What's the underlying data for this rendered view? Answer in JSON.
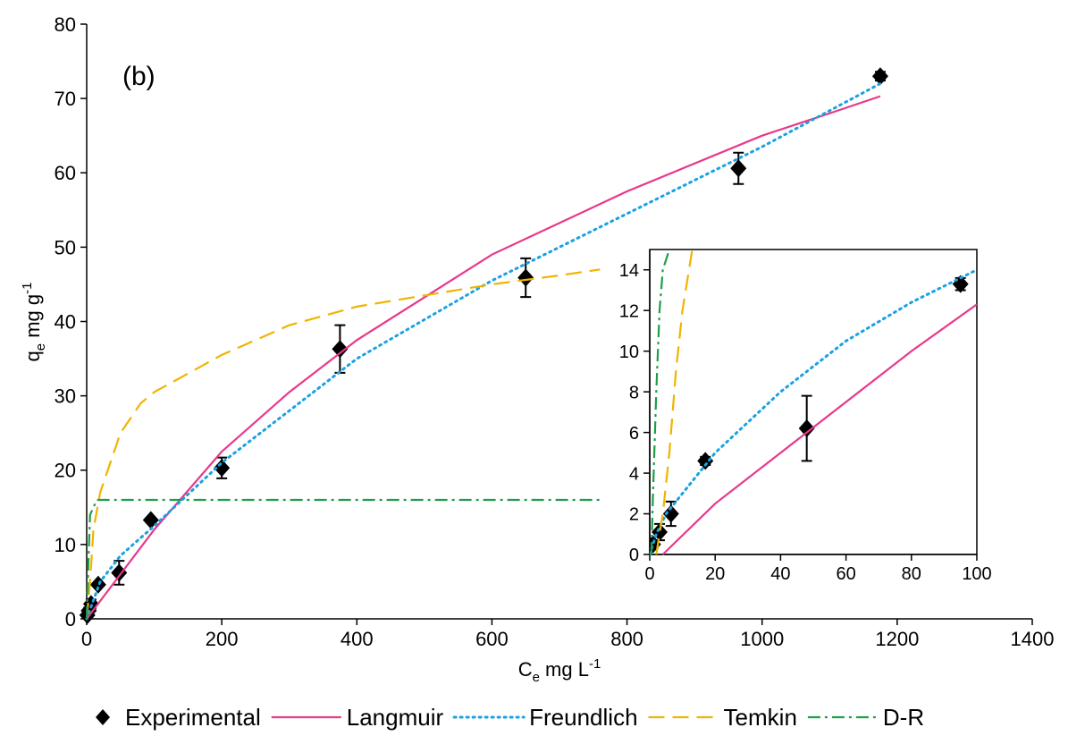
{
  "chart_data": [
    {
      "type": "line",
      "annotation": "(b)",
      "x_label": {
        "base": "C",
        "sub": "e",
        "rest": " mg L",
        "sup": "-1"
      },
      "y_label": {
        "base": "q",
        "sub": "e",
        "rest": " mg g",
        "sup": "-1"
      },
      "xlim": [
        0,
        1400
      ],
      "xticks": [
        0,
        200,
        400,
        600,
        800,
        1000,
        1200,
        1400
      ],
      "ylim": [
        0,
        80
      ],
      "yticks": [
        0,
        10,
        20,
        30,
        40,
        50,
        60,
        70,
        80
      ],
      "series": [
        {
          "name": "Experimental",
          "style": "markers",
          "color": "#000000",
          "x": [
            1,
            3,
            6.5,
            17,
            48,
            95,
            200,
            375,
            650,
            965,
            1175
          ],
          "values": [
            0.5,
            1.1,
            2.0,
            4.6,
            6.2,
            13.3,
            20.3,
            36.3,
            45.9,
            60.6,
            73.0
          ],
          "errors": [
            0.2,
            0.4,
            0.6,
            0.2,
            1.6,
            0.3,
            1.4,
            3.2,
            2.6,
            2.1,
            0.6
          ]
        },
        {
          "name": "Langmuir",
          "style": "solid",
          "color": "#e8388a",
          "x": [
            0,
            50,
            100,
            200,
            300,
            400,
            600,
            800,
            1000,
            1100,
            1175
          ],
          "values": [
            0,
            6,
            12,
            22.5,
            30.5,
            37.5,
            49,
            57.5,
            65,
            68,
            70.3
          ]
        },
        {
          "name": "Freundlich",
          "style": "dotted",
          "color": "#1ba1e2",
          "x": [
            0,
            20,
            50,
            100,
            200,
            400,
            600,
            800,
            1000,
            1175
          ],
          "values": [
            0,
            5,
            8.5,
            12.5,
            21,
            35,
            45.5,
            54.5,
            63.5,
            72
          ]
        },
        {
          "name": "Temkin",
          "style": "dashed",
          "color": "#f0b400",
          "x": [
            0,
            5,
            10,
            20,
            50,
            80,
            100,
            200,
            300,
            400,
            500,
            600,
            700,
            760
          ],
          "values": [
            0,
            5,
            12,
            17,
            25,
            29,
            30.5,
            35.5,
            39.5,
            42,
            43.5,
            45,
            46.2,
            47
          ]
        },
        {
          "name": "D-R",
          "style": "dashdot",
          "color": "#1e9e4a",
          "x": [
            0,
            2,
            5,
            15,
            100,
            760
          ],
          "values": [
            0,
            6,
            14,
            16,
            16,
            16
          ]
        }
      ]
    },
    {
      "type": "line",
      "xlim": [
        0,
        100
      ],
      "xticks": [
        0,
        20,
        40,
        60,
        80,
        100
      ],
      "ylim": [
        0,
        15
      ],
      "yticks": [
        0,
        2,
        4,
        6,
        8,
        10,
        12,
        14
      ],
      "series": [
        {
          "style": "markers",
          "color": "#000000",
          "x": [
            1,
            3,
            6.5,
            17,
            48,
            95
          ],
          "values": [
            0.5,
            1.1,
            2.0,
            4.6,
            6.2,
            13.3
          ],
          "errors": [
            0.2,
            0.4,
            0.6,
            0.2,
            1.6,
            0.3
          ]
        },
        {
          "style": "solid",
          "color": "#e8388a",
          "x": [
            4,
            20,
            40,
            60,
            80,
            100
          ],
          "values": [
            0,
            2.5,
            5,
            7.5,
            10,
            12.3
          ]
        },
        {
          "style": "dotted",
          "color": "#1ba1e2",
          "x": [
            0,
            2,
            5,
            10,
            20,
            40,
            60,
            80,
            100
          ],
          "values": [
            0,
            1,
            2,
            3,
            5,
            8,
            10.5,
            12.4,
            14
          ]
        },
        {
          "style": "dashed",
          "color": "#f0b400",
          "x": [
            2,
            4,
            6,
            8,
            10,
            12,
            13
          ],
          "values": [
            0,
            2,
            5,
            9,
            12,
            14,
            15
          ]
        },
        {
          "style": "dashdot",
          "color": "#1e9e4a",
          "x": [
            0.5,
            1,
            2,
            3,
            4,
            6
          ],
          "values": [
            0,
            3,
            8,
            12,
            14,
            15
          ]
        }
      ]
    }
  ]
}
